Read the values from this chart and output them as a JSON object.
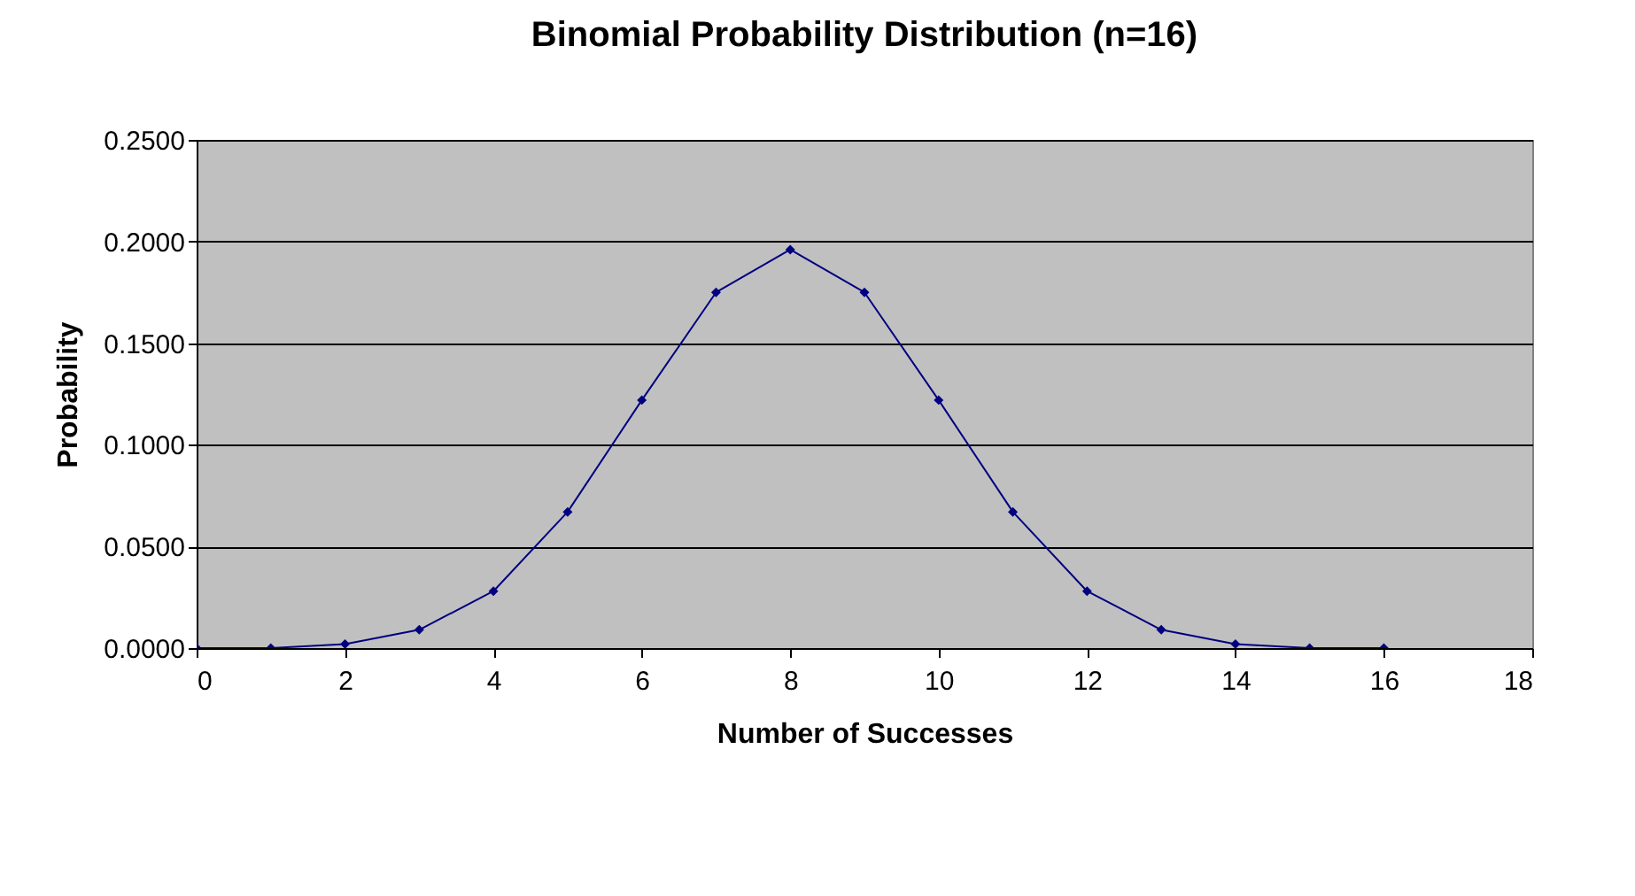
{
  "chart_data": {
    "type": "line",
    "title": "Binomial Probability Distribution (n=16)",
    "xlabel": "Number of Successes",
    "ylabel": "Probability",
    "x": [
      0,
      1,
      2,
      3,
      4,
      5,
      6,
      7,
      8,
      9,
      10,
      11,
      12,
      13,
      14,
      15,
      16
    ],
    "series": [
      {
        "color": "#000080",
        "values": [
          0,
          0,
          0.002,
          0.009,
          0.028,
          0.067,
          0.122,
          0.175,
          0.196,
          0.175,
          0.122,
          0.067,
          0.028,
          0.009,
          0.002,
          0,
          0
        ]
      }
    ],
    "xlim": [
      0,
      18
    ],
    "xticks": [
      0,
      2,
      4,
      6,
      8,
      10,
      12,
      14,
      16,
      18
    ],
    "ylim": [
      0,
      0.25
    ],
    "yticks": [
      {
        "value": 0,
        "label": "0.0000"
      },
      {
        "value": 0.05,
        "label": "0.0500"
      },
      {
        "value": 0.1,
        "label": "0.1000"
      },
      {
        "value": 0.15,
        "label": "0.1500"
      },
      {
        "value": 0.2,
        "label": "0.2000"
      },
      {
        "value": 0.25,
        "label": "0.2500"
      }
    ],
    "grid": "y",
    "marker": "diamond",
    "line_style": "solid"
  }
}
